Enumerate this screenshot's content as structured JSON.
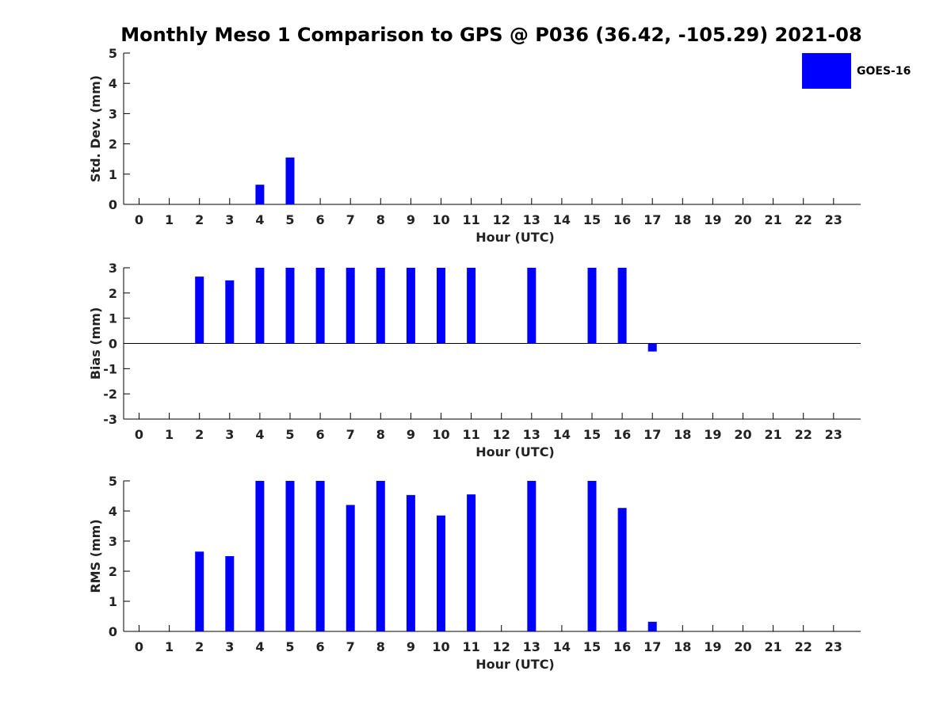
{
  "title": "Monthly Meso 1 Comparison to GPS @ P036 (36.42, -105.29) 2021-08",
  "legend": {
    "label": "GOES-16",
    "color": "#0000ff"
  },
  "chart_data": [
    {
      "type": "bar",
      "ylabel": "Std. Dev. (mm)",
      "xlabel": "Hour (UTC)",
      "ylim": [
        0,
        5
      ],
      "yticks": [
        0,
        1,
        2,
        3,
        4,
        5
      ],
      "xticks": [
        0,
        1,
        2,
        3,
        4,
        5,
        6,
        7,
        8,
        9,
        10,
        11,
        12,
        13,
        14,
        15,
        16,
        17,
        18,
        19,
        20,
        21,
        22,
        23
      ],
      "series": [
        {
          "name": "GOES-16",
          "values": [
            null,
            null,
            0.0,
            0.0,
            0.65,
            1.55,
            0.0,
            0.0,
            0.0,
            0.0,
            0.0,
            0.0,
            null,
            0.0,
            null,
            0.0,
            0.0,
            0.0,
            null,
            null,
            null,
            null,
            null,
            null
          ]
        }
      ]
    },
    {
      "type": "bar",
      "ylabel": "Bias (mm)",
      "xlabel": "Hour (UTC)",
      "ylim": [
        -3,
        3
      ],
      "yticks": [
        -3,
        -2,
        -1,
        0,
        1,
        2,
        3
      ],
      "xticks": [
        0,
        1,
        2,
        3,
        4,
        5,
        6,
        7,
        8,
        9,
        10,
        11,
        12,
        13,
        14,
        15,
        16,
        17,
        18,
        19,
        20,
        21,
        22,
        23
      ],
      "series": [
        {
          "name": "GOES-16",
          "values": [
            null,
            null,
            2.65,
            2.5,
            3.0,
            3.0,
            3.0,
            3.0,
            3.0,
            3.0,
            3.0,
            3.0,
            null,
            3.0,
            null,
            3.0,
            3.0,
            -0.32,
            null,
            null,
            null,
            null,
            null,
            null
          ]
        }
      ]
    },
    {
      "type": "bar",
      "ylabel": "RMS (mm)",
      "xlabel": "Hour (UTC)",
      "ylim": [
        0,
        5
      ],
      "yticks": [
        0,
        1,
        2,
        3,
        4,
        5
      ],
      "xticks": [
        0,
        1,
        2,
        3,
        4,
        5,
        6,
        7,
        8,
        9,
        10,
        11,
        12,
        13,
        14,
        15,
        16,
        17,
        18,
        19,
        20,
        21,
        22,
        23
      ],
      "series": [
        {
          "name": "GOES-16",
          "values": [
            null,
            null,
            2.65,
            2.5,
            5.0,
            5.0,
            5.0,
            4.2,
            5.0,
            4.53,
            3.85,
            4.55,
            null,
            5.0,
            null,
            5.0,
            4.1,
            0.32,
            null,
            null,
            null,
            null,
            null,
            null
          ]
        }
      ]
    }
  ]
}
